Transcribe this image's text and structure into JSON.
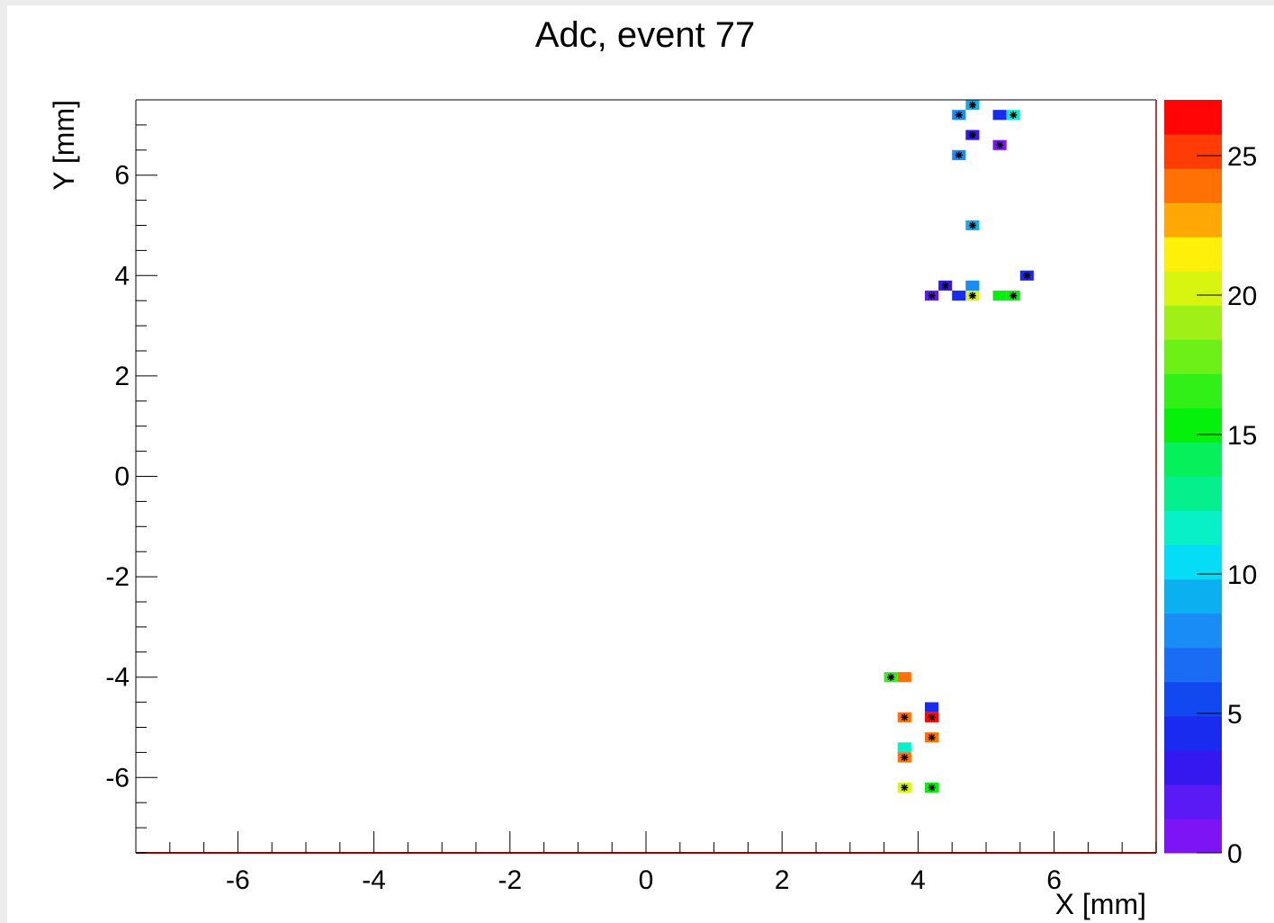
{
  "chart_data": {
    "type": "heatmap",
    "title": "Adc, event 77",
    "xlabel": "X [mm]",
    "ylabel": "Y [mm]",
    "xlim": [
      -7.5,
      7.5
    ],
    "ylim": [
      -7.5,
      7.5
    ],
    "x_ticks": [
      -6,
      -4,
      -2,
      0,
      2,
      4,
      6
    ],
    "y_ticks": [
      -6,
      -4,
      -2,
      0,
      2,
      4,
      6
    ],
    "grid": false,
    "colorbar": {
      "range": [
        0,
        27
      ],
      "ticks": [
        0,
        5,
        10,
        15,
        20,
        25
      ],
      "levels": 20,
      "palette": [
        "#7d14f5",
        "#5a1af5",
        "#3518f0",
        "#1a2bf0",
        "#1248f0",
        "#1a6cf5",
        "#1a8cf5",
        "#0ab0f0",
        "#05dcf5",
        "#08f0c8",
        "#05f08c",
        "#05f05a",
        "#05f00a",
        "#30f018",
        "#6cf018",
        "#a0f018",
        "#d8f510",
        "#fff00a",
        "#ffa805",
        "#ff7005",
        "#ff3c05",
        "#ff0505"
      ]
    },
    "cells": [
      {
        "x": 4.8,
        "y": 7.4,
        "value": 9,
        "marker": true
      },
      {
        "x": 4.6,
        "y": 7.2,
        "value": 8,
        "marker": true
      },
      {
        "x": 5.2,
        "y": 7.2,
        "value": 4,
        "marker": false
      },
      {
        "x": 5.4,
        "y": 7.2,
        "value": 12,
        "marker": true
      },
      {
        "x": 4.8,
        "y": 6.8,
        "value": 3,
        "marker": true
      },
      {
        "x": 5.2,
        "y": 6.6,
        "value": 1,
        "marker": true
      },
      {
        "x": 4.6,
        "y": 6.4,
        "value": 8,
        "marker": true
      },
      {
        "x": 4.8,
        "y": 5.0,
        "value": 9,
        "marker": true
      },
      {
        "x": 5.6,
        "y": 4.0,
        "value": 4,
        "marker": true
      },
      {
        "x": 4.4,
        "y": 3.8,
        "value": 3,
        "marker": true
      },
      {
        "x": 4.8,
        "y": 3.8,
        "value": 8,
        "marker": false
      },
      {
        "x": 4.2,
        "y": 3.6,
        "value": 2,
        "marker": true
      },
      {
        "x": 4.6,
        "y": 3.6,
        "value": 4,
        "marker": false
      },
      {
        "x": 4.8,
        "y": 3.6,
        "value": 20,
        "marker": true
      },
      {
        "x": 5.2,
        "y": 3.6,
        "value": 15,
        "marker": false
      },
      {
        "x": 5.4,
        "y": 3.6,
        "value": 15,
        "marker": true
      },
      {
        "x": 3.6,
        "y": -4.0,
        "value": 17,
        "marker": true
      },
      {
        "x": 3.8,
        "y": -4.0,
        "value": 24,
        "marker": false
      },
      {
        "x": 4.2,
        "y": -4.6,
        "value": 4,
        "marker": false
      },
      {
        "x": 3.8,
        "y": -4.8,
        "value": 24,
        "marker": true
      },
      {
        "x": 4.2,
        "y": -4.8,
        "value": 27,
        "marker": true
      },
      {
        "x": 4.2,
        "y": -5.2,
        "value": 24,
        "marker": true
      },
      {
        "x": 3.8,
        "y": -5.4,
        "value": 12,
        "marker": false
      },
      {
        "x": 3.8,
        "y": -5.6,
        "value": 24,
        "marker": true
      },
      {
        "x": 3.8,
        "y": -6.2,
        "value": 20,
        "marker": true
      },
      {
        "x": 4.2,
        "y": -6.2,
        "value": 15,
        "marker": true
      }
    ]
  }
}
